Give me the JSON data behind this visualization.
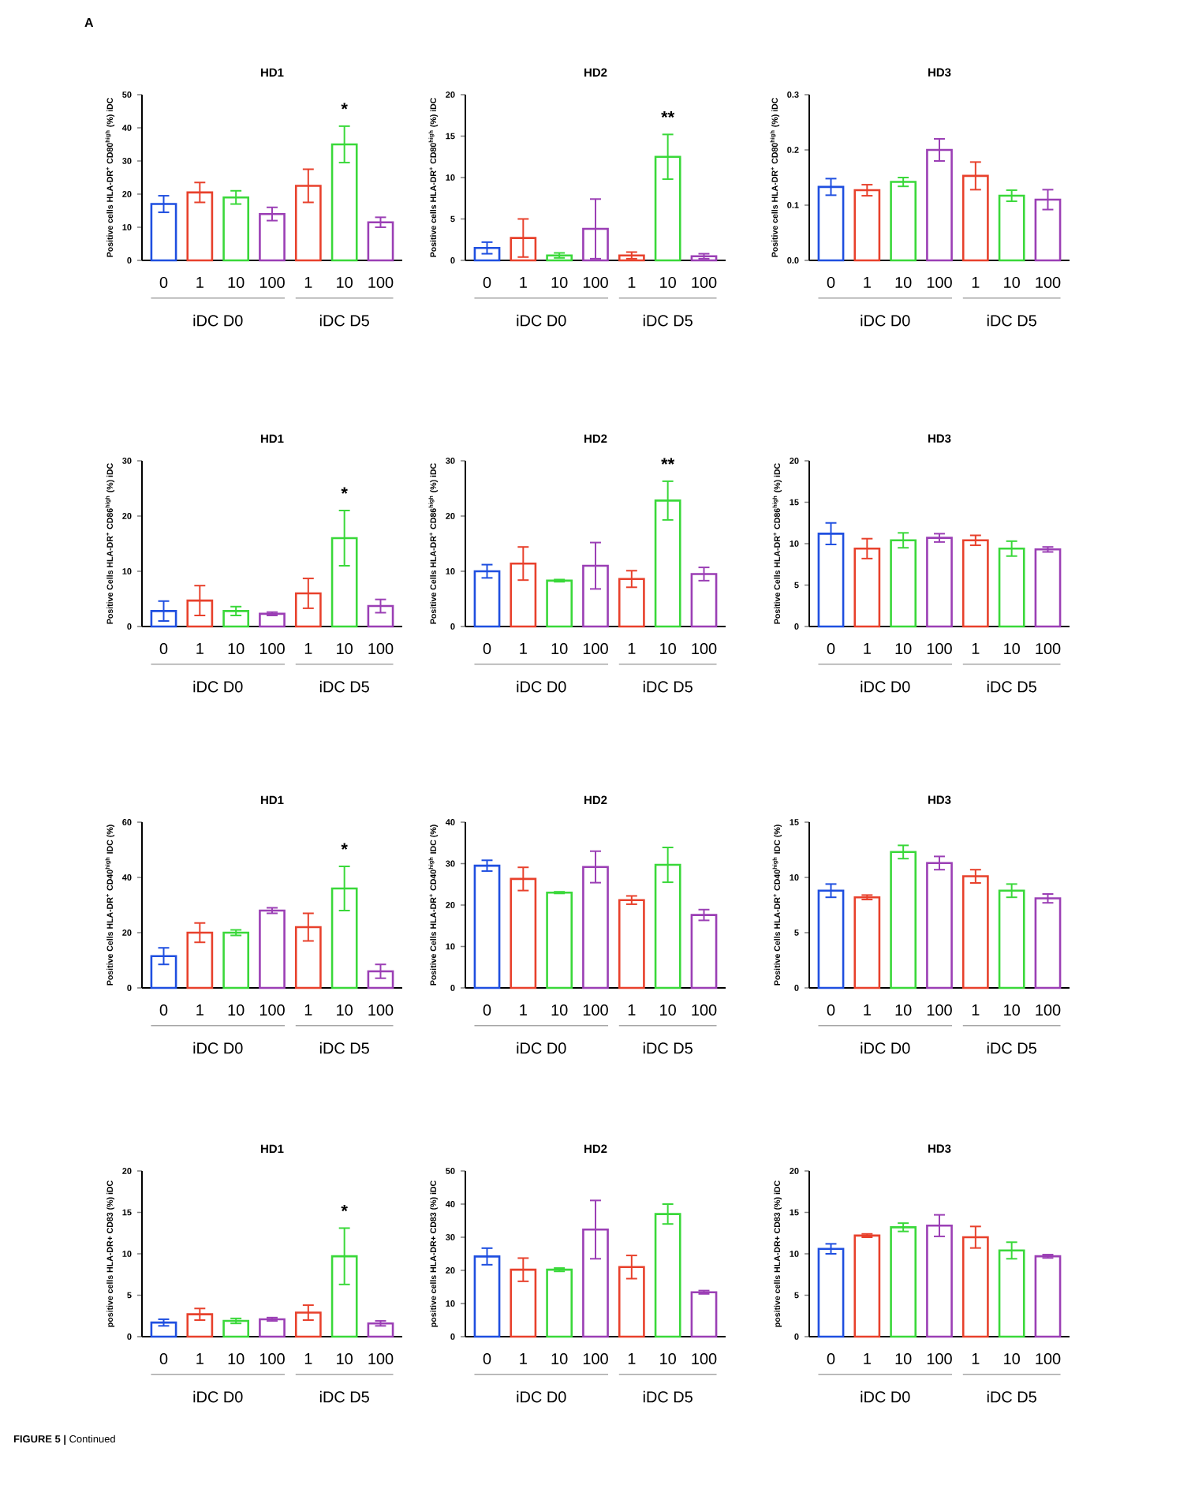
{
  "chart_data": [
    {
      "type": "bar",
      "title": "HD1",
      "ylabel": "Positive cells HLA-DR$^{+}$ CD80$^{high}$ (%) iDC",
      "categories": [
        "0",
        "1",
        "10",
        "100",
        "1",
        "10",
        "100"
      ],
      "values": [
        17,
        20.5,
        19,
        14,
        22.5,
        35,
        11.5
      ],
      "errors": [
        2.5,
        3,
        2,
        2,
        5,
        5.5,
        1.5
      ],
      "colors": [
        "#1f4fe0",
        "#e8412c",
        "#3ad83a",
        "#9b3fb5",
        "#e8412c",
        "#3ad83a",
        "#9b3fb5"
      ],
      "ylim": [
        0,
        50
      ],
      "yticks": [
        0,
        10,
        20,
        30,
        40,
        50
      ],
      "annotations": [
        "A",
        "*",
        "iDC D0",
        "iDC D5"
      ]
    },
    {
      "type": "bar",
      "title": "HD2",
      "ylabel": "Positive cells HLA-DR$^{+}$ CD80$^{high}$ (%) iDC",
      "categories": [
        "0",
        "1",
        "10",
        "100",
        "1",
        "10",
        "100"
      ],
      "values": [
        1.5,
        2.7,
        0.6,
        3.8,
        0.6,
        12.5,
        0.5
      ],
      "errors": [
        0.7,
        2.3,
        0.3,
        3.6,
        0.4,
        2.7,
        0.3
      ],
      "colors": [
        "#1f4fe0",
        "#e8412c",
        "#3ad83a",
        "#9b3fb5",
        "#e8412c",
        "#3ad83a",
        "#9b3fb5"
      ],
      "ylim": [
        0,
        20
      ],
      "yticks": [
        0,
        5,
        10,
        15,
        20
      ],
      "annotations": [
        "**",
        "iDC D0",
        "iDC D5"
      ]
    },
    {
      "type": "bar",
      "title": "HD3",
      "ylabel": "Positive cells HLA-DR$^{+}$ CD80$^{high}$ (%) iDC",
      "categories": [
        "0",
        "1",
        "10",
        "100",
        "1",
        "10",
        "100"
      ],
      "values": [
        0.133,
        0.127,
        0.142,
        0.2,
        0.153,
        0.117,
        0.11
      ],
      "errors": [
        0.015,
        0.01,
        0.008,
        0.02,
        0.025,
        0.01,
        0.018
      ],
      "colors": [
        "#1f4fe0",
        "#e8412c",
        "#3ad83a",
        "#9b3fb5",
        "#e8412c",
        "#3ad83a",
        "#9b3fb5"
      ],
      "ylim": [
        0,
        0.3
      ],
      "yticks": [
        {
          "value": 0,
          "label": "0.0"
        },
        {
          "value": 0.1,
          "label": "0.1"
        },
        {
          "value": 0.2,
          "label": "0.2"
        },
        {
          "value": 0.3,
          "label": "0.3"
        }
      ],
      "annotations": [
        "iDC D0",
        "iDC D5"
      ]
    },
    {
      "type": "bar",
      "title": "HD1",
      "ylabel": "Positive Cells HLA-DR$^{+}$ CD86$^{high}$ (%) iDC",
      "categories": [
        "0",
        "1",
        "10",
        "100",
        "1",
        "10",
        "100"
      ],
      "values": [
        2.8,
        4.7,
        2.8,
        2.3,
        6,
        16,
        3.7
      ],
      "errors": [
        1.8,
        2.7,
        0.8,
        0.3,
        2.7,
        5,
        1.2
      ],
      "colors": [
        "#1f4fe0",
        "#e8412c",
        "#3ad83a",
        "#9b3fb5",
        "#e8412c",
        "#3ad83a",
        "#9b3fb5"
      ],
      "ylim": [
        0,
        30
      ],
      "yticks": [
        0,
        10,
        20,
        30
      ],
      "annotations": [
        "*",
        "iDC D0",
        "iDC D5"
      ]
    },
    {
      "type": "bar",
      "title": "HD2",
      "ylabel": "Positive Cells HLA-DR$^{+}$ CD86$^{high}$ (%) iDC",
      "categories": [
        "0",
        "1",
        "10",
        "100",
        "1",
        "10",
        "100"
      ],
      "values": [
        10,
        11.4,
        8.3,
        11,
        8.6,
        22.8,
        9.5
      ],
      "errors": [
        1.2,
        3,
        0.2,
        4.2,
        1.5,
        3.5,
        1.2
      ],
      "colors": [
        "#1f4fe0",
        "#e8412c",
        "#3ad83a",
        "#9b3fb5",
        "#e8412c",
        "#3ad83a",
        "#9b3fb5"
      ],
      "ylim": [
        0,
        30
      ],
      "yticks": [
        0,
        10,
        20,
        30
      ],
      "annotations": [
        "**",
        "iDC D0",
        "iDC D5"
      ]
    },
    {
      "type": "bar",
      "title": "HD3",
      "ylabel": "Positive Cells HLA-DR$^{+}$ CD86$^{high}$ (%) iDC",
      "categories": [
        "0",
        "1",
        "10",
        "100",
        "1",
        "10",
        "100"
      ],
      "values": [
        11.2,
        9.4,
        10.4,
        10.7,
        10.4,
        9.4,
        9.3
      ],
      "errors": [
        1.3,
        1.2,
        0.9,
        0.5,
        0.6,
        0.9,
        0.3
      ],
      "colors": [
        "#1f4fe0",
        "#e8412c",
        "#3ad83a",
        "#9b3fb5",
        "#e8412c",
        "#3ad83a",
        "#9b3fb5"
      ],
      "ylim": [
        0,
        20
      ],
      "yticks": [
        0,
        5,
        10,
        15,
        20
      ],
      "annotations": [
        "iDC D0",
        "iDC D5"
      ]
    },
    {
      "type": "bar",
      "title": "HD1",
      "ylabel": "Positive Cells HLA-DR$^{+}$ CD40$^{high}$ IDC (%)",
      "categories": [
        "0",
        "1",
        "10",
        "100",
        "1",
        "10",
        "100"
      ],
      "values": [
        11.5,
        20,
        20,
        28,
        22,
        36,
        6
      ],
      "errors": [
        3,
        3.5,
        1,
        1,
        5,
        8,
        2.5
      ],
      "colors": [
        "#1f4fe0",
        "#e8412c",
        "#3ad83a",
        "#9b3fb5",
        "#e8412c",
        "#3ad83a",
        "#9b3fb5"
      ],
      "ylim": [
        0,
        60
      ],
      "yticks": [
        0,
        20,
        40,
        60
      ],
      "annotations": [
        "*",
        "iDC D0",
        "iDC D5"
      ]
    },
    {
      "type": "bar",
      "title": "HD2",
      "ylabel": "Positive Cells HLA-DR$^{+}$ CD40$^{high}$ IDC (%)",
      "categories": [
        "0",
        "1",
        "10",
        "100",
        "1",
        "10",
        "100"
      ],
      "values": [
        29.5,
        26.3,
        23,
        29.2,
        21.2,
        29.7,
        17.6
      ],
      "errors": [
        1.3,
        2.8,
        0.2,
        3.8,
        1,
        4.2,
        1.3
      ],
      "colors": [
        "#1f4fe0",
        "#e8412c",
        "#3ad83a",
        "#9b3fb5",
        "#e8412c",
        "#3ad83a",
        "#9b3fb5"
      ],
      "ylim": [
        0,
        40
      ],
      "yticks": [
        0,
        10,
        20,
        30,
        40
      ],
      "annotations": [
        "iDC D0",
        "iDC D5"
      ]
    },
    {
      "type": "bar",
      "title": "HD3",
      "ylabel": "Positive Cells HLA-DR$^{+}$ CD40$^{high}$ IDC (%)",
      "categories": [
        "0",
        "1",
        "10",
        "100",
        "1",
        "10",
        "100"
      ],
      "values": [
        8.8,
        8.2,
        12.3,
        11.3,
        10.1,
        8.8,
        8.1
      ],
      "errors": [
        0.6,
        0.2,
        0.6,
        0.6,
        0.6,
        0.6,
        0.4
      ],
      "colors": [
        "#1f4fe0",
        "#e8412c",
        "#3ad83a",
        "#9b3fb5",
        "#e8412c",
        "#3ad83a",
        "#9b3fb5"
      ],
      "ylim": [
        0,
        15
      ],
      "yticks": [
        0,
        5,
        10,
        15
      ],
      "annotations": [
        "iDC D0",
        "iDC D5"
      ]
    },
    {
      "type": "bar",
      "title": "HD1",
      "ylabel": "positive cells  HLA-DR+ CD83 (%) iDC",
      "categories": [
        "0",
        "1",
        "10",
        "100",
        "1",
        "10",
        "100"
      ],
      "values": [
        1.7,
        2.7,
        1.9,
        2.1,
        2.9,
        9.7,
        1.6
      ],
      "errors": [
        0.4,
        0.7,
        0.3,
        0.2,
        0.9,
        3.4,
        0.3
      ],
      "colors": [
        "#1f4fe0",
        "#e8412c",
        "#3ad83a",
        "#9b3fb5",
        "#e8412c",
        "#3ad83a",
        "#9b3fb5"
      ],
      "ylim": [
        0,
        20
      ],
      "yticks": [
        0,
        5,
        10,
        15,
        20
      ],
      "annotations": [
        "*",
        "iDC D0",
        "iDC D5"
      ]
    },
    {
      "type": "bar",
      "title": "HD2",
      "ylabel": "positive cells  HLA-DR+ CD83 (%) iDC",
      "categories": [
        "0",
        "1",
        "10",
        "100",
        "1",
        "10",
        "100"
      ],
      "values": [
        24.2,
        20.2,
        20.2,
        32.3,
        21,
        37,
        13.4
      ],
      "errors": [
        2.5,
        3.5,
        0.5,
        8.8,
        3.5,
        3,
        0.5
      ],
      "colors": [
        "#1f4fe0",
        "#e8412c",
        "#3ad83a",
        "#9b3fb5",
        "#e8412c",
        "#3ad83a",
        "#9b3fb5"
      ],
      "ylim": [
        0,
        50
      ],
      "yticks": [
        0,
        10,
        20,
        30,
        40,
        50
      ],
      "annotations": [
        "iDC D0",
        "iDC D5"
      ]
    },
    {
      "type": "bar",
      "title": "HD3",
      "ylabel": "positive cells  HLA-DR+ CD83 (%) iDC",
      "categories": [
        "0",
        "1",
        "10",
        "100",
        "1",
        "10",
        "100"
      ],
      "values": [
        10.6,
        12.2,
        13.2,
        13.4,
        12,
        10.4,
        9.7
      ],
      "errors": [
        0.6,
        0.2,
        0.5,
        1.3,
        1.3,
        1,
        0.2
      ],
      "colors": [
        "#1f4fe0",
        "#e8412c",
        "#3ad83a",
        "#9b3fb5",
        "#e8412c",
        "#3ad83a",
        "#9b3fb5"
      ],
      "ylim": [
        0,
        20
      ],
      "yticks": [
        0,
        5,
        10,
        15,
        20
      ],
      "annotations": [
        "iDC D0",
        "iDC D5",
        "**FIGURE 5 |** Continued"
      ]
    }
  ]
}
